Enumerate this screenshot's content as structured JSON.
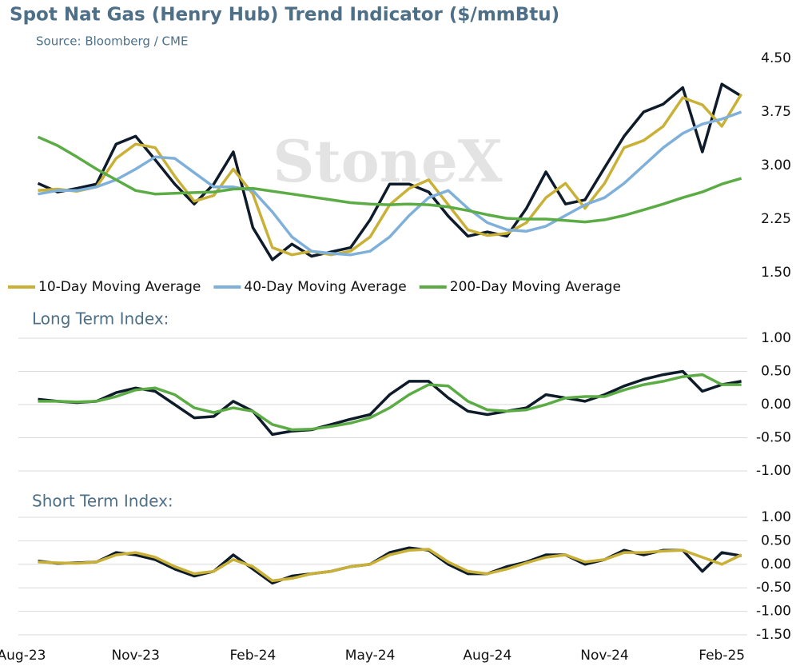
{
  "chart_data": [
    {
      "type": "line",
      "title": "Spot Nat Gas (Henry Hub) Trend Indicator ($/mmBtu)",
      "subtitle": "Source: Bloomberg / CME",
      "watermark": "StoneX",
      "ylim": [
        1.5,
        4.5
      ],
      "yticks": [
        {
          "value": 1.5,
          "label": "1.50"
        },
        2.25,
        {
          "value": 3,
          "label": "3.00"
        },
        3.75,
        {
          "value": 4.5,
          "label": "4.50"
        }
      ],
      "grid": false,
      "legend": "bottom",
      "series": [
        {
          "color": "#0d1b2a",
          "values": [
            null,
            2.75,
            2.63,
            2.68,
            2.74,
            3.3,
            3.41,
            3.08,
            2.74,
            2.46,
            2.74,
            3.19,
            2.13,
            1.68,
            1.9,
            1.73,
            1.79,
            1.85,
            2.24,
            2.74,
            2.74,
            2.63,
            2.29,
            2.01,
            2.07,
            2.01,
            2.4,
            2.91,
            2.46,
            2.52,
            2.97,
            3.41,
            3.75,
            3.86,
            4.09,
            3.19,
            4.14,
            3.97
          ]
        },
        {
          "name": "10-Day Moving Average",
          "color": "#c9b037",
          "values": [
            null,
            2.65,
            2.67,
            2.64,
            2.7,
            3.1,
            3.3,
            3.25,
            2.85,
            2.5,
            2.58,
            2.95,
            2.6,
            1.85,
            1.75,
            1.8,
            1.75,
            1.8,
            2.0,
            2.45,
            2.68,
            2.8,
            2.45,
            2.1,
            2.02,
            2.05,
            2.2,
            2.55,
            2.75,
            2.4,
            2.75,
            3.25,
            3.35,
            3.55,
            3.95,
            3.85,
            3.55,
            4.0
          ]
        },
        {
          "name": "40-Day Moving Average",
          "color": "#7fb0da",
          "values": [
            null,
            2.6,
            2.65,
            2.65,
            2.7,
            2.8,
            2.95,
            3.12,
            3.1,
            2.9,
            2.7,
            2.7,
            2.65,
            2.35,
            2.0,
            1.8,
            1.77,
            1.75,
            1.8,
            2.0,
            2.3,
            2.55,
            2.65,
            2.4,
            2.2,
            2.1,
            2.08,
            2.15,
            2.3,
            2.45,
            2.55,
            2.75,
            3.0,
            3.25,
            3.45,
            3.58,
            3.65,
            3.75
          ]
        },
        {
          "name": "200-Day Moving Average",
          "color": "#5cac45",
          "values": [
            null,
            3.4,
            3.28,
            3.12,
            2.95,
            2.8,
            2.65,
            2.6,
            2.61,
            2.62,
            2.63,
            2.67,
            2.68,
            2.64,
            2.6,
            2.56,
            2.52,
            2.48,
            2.46,
            2.45,
            2.46,
            2.45,
            2.42,
            2.37,
            2.31,
            2.26,
            2.25,
            2.25,
            2.23,
            2.21,
            2.24,
            2.3,
            2.38,
            2.46,
            2.55,
            2.63,
            2.74,
            2.82
          ]
        }
      ]
    },
    {
      "type": "line",
      "title": "Long Term Index:",
      "ylim": [
        -1,
        1
      ],
      "yticks": [
        {
          "value": -1,
          "label": "-1.00"
        },
        {
          "value": -0.5,
          "label": "-0.50"
        },
        {
          "value": 0,
          "label": "0.00"
        },
        {
          "value": 0.5,
          "label": "0.50"
        },
        {
          "value": 1,
          "label": "1.00"
        }
      ],
      "grid": true,
      "series": [
        {
          "color": "#0d1b2a",
          "values": [
            null,
            0.08,
            0.05,
            0.03,
            0.05,
            0.18,
            0.25,
            0.2,
            0.0,
            -0.2,
            -0.18,
            0.05,
            -0.1,
            -0.45,
            -0.4,
            -0.38,
            -0.3,
            -0.22,
            -0.15,
            0.15,
            0.35,
            0.35,
            0.1,
            -0.1,
            -0.15,
            -0.1,
            -0.05,
            0.15,
            0.1,
            0.05,
            0.15,
            0.28,
            0.38,
            0.45,
            0.5,
            0.2,
            0.3,
            0.35
          ]
        },
        {
          "color": "#5cac45",
          "values": [
            null,
            0.05,
            0.05,
            0.04,
            0.05,
            0.12,
            0.22,
            0.25,
            0.15,
            -0.05,
            -0.12,
            -0.05,
            -0.1,
            -0.3,
            -0.38,
            -0.37,
            -0.33,
            -0.28,
            -0.2,
            -0.05,
            0.15,
            0.3,
            0.28,
            0.05,
            -0.08,
            -0.1,
            -0.08,
            0.0,
            0.1,
            0.12,
            0.12,
            0.22,
            0.3,
            0.35,
            0.42,
            0.45,
            0.3,
            0.3
          ]
        }
      ]
    },
    {
      "type": "line",
      "title": "Short Term Index:",
      "categories": [
        "Aug-23",
        null,
        null,
        null,
        null,
        null,
        "Nov-23",
        null,
        null,
        null,
        null,
        null,
        "Feb-24",
        null,
        null,
        null,
        null,
        null,
        "May-24",
        null,
        null,
        null,
        null,
        null,
        "Aug-24",
        null,
        null,
        null,
        null,
        null,
        "Nov-24",
        null,
        null,
        null,
        null,
        null,
        "Feb-25",
        null
      ],
      "ylim": [
        -1.5,
        1
      ],
      "yticks": [
        {
          "value": -1.5,
          "label": "-1.50"
        },
        {
          "value": -1,
          "label": "-1.00"
        },
        {
          "value": -0.5,
          "label": "-0.50"
        },
        {
          "value": 0,
          "label": "0.00"
        },
        {
          "value": 0.5,
          "label": "0.50"
        },
        {
          "value": 1,
          "label": "1.00"
        }
      ],
      "grid": true,
      "series": [
        {
          "color": "#0d1b2a",
          "values": [
            null,
            0.07,
            0.02,
            0.03,
            0.05,
            0.25,
            0.2,
            0.1,
            -0.1,
            -0.25,
            -0.15,
            0.2,
            -0.1,
            -0.4,
            -0.25,
            -0.2,
            -0.15,
            -0.05,
            0.0,
            0.25,
            0.35,
            0.3,
            0.0,
            -0.2,
            -0.2,
            -0.05,
            0.05,
            0.2,
            0.2,
            0.0,
            0.1,
            0.3,
            0.2,
            0.3,
            0.3,
            -0.15,
            0.25,
            0.18
          ]
        },
        {
          "color": "#c9b037",
          "values": [
            null,
            0.05,
            0.03,
            0.02,
            0.05,
            0.2,
            0.25,
            0.15,
            -0.05,
            -0.2,
            -0.15,
            0.1,
            -0.05,
            -0.35,
            -0.3,
            -0.2,
            -0.15,
            -0.05,
            0.0,
            0.2,
            0.3,
            0.32,
            0.05,
            -0.15,
            -0.2,
            -0.1,
            0.03,
            0.15,
            0.2,
            0.05,
            0.1,
            0.25,
            0.25,
            0.28,
            0.3,
            0.15,
            0.0,
            0.2
          ]
        }
      ]
    }
  ]
}
